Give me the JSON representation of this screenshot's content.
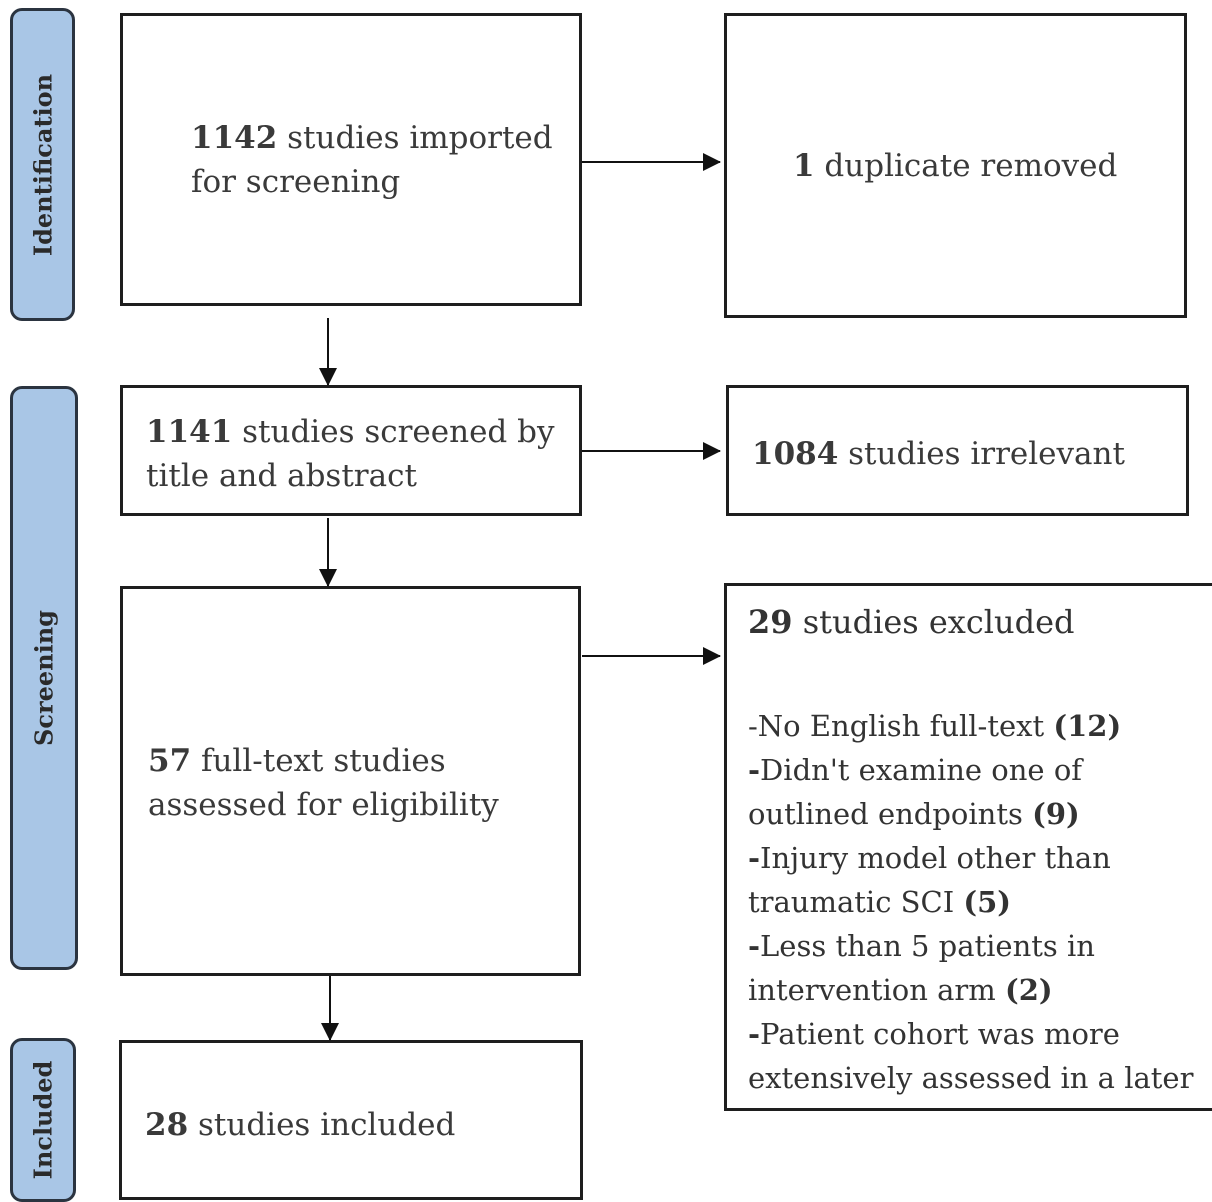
{
  "stages": {
    "identification": "Identification",
    "screening": "Screening",
    "included": "Included"
  },
  "boxes": {
    "imported": {
      "num": "1142",
      "text1": " studies imported",
      "text2": "for screening"
    },
    "duplicate": {
      "num": "1",
      "text": " duplicate removed"
    },
    "screened": {
      "num": "1141",
      "text1": " studies screened by",
      "text2": "title and abstract"
    },
    "irrelevant": {
      "num": "1084",
      "text": " studies irrelevant"
    },
    "fulltext": {
      "num": "57",
      "text1": " full-text studies",
      "text2": "assessed for eligibility"
    },
    "excluded": {
      "num": "29",
      "text": " studies excluded",
      "reasons": [
        {
          "line1": "-No English full-text ",
          "count": "(12)"
        },
        {
          "line1": "Didn't examine one of",
          "line2": "outlined endpoints ",
          "count": "(9)"
        },
        {
          "line1": "Injury model other than",
          "line2": "traumatic SCI ",
          "count": "(5)"
        },
        {
          "line1": "Less than 5 patients in",
          "line2": "intervention arm ",
          "count": "(2)"
        },
        {
          "line1": "Patient cohort was more",
          "line2": "extensively assessed in a later"
        }
      ]
    },
    "included": {
      "num": "28",
      "text": " studies included"
    }
  }
}
